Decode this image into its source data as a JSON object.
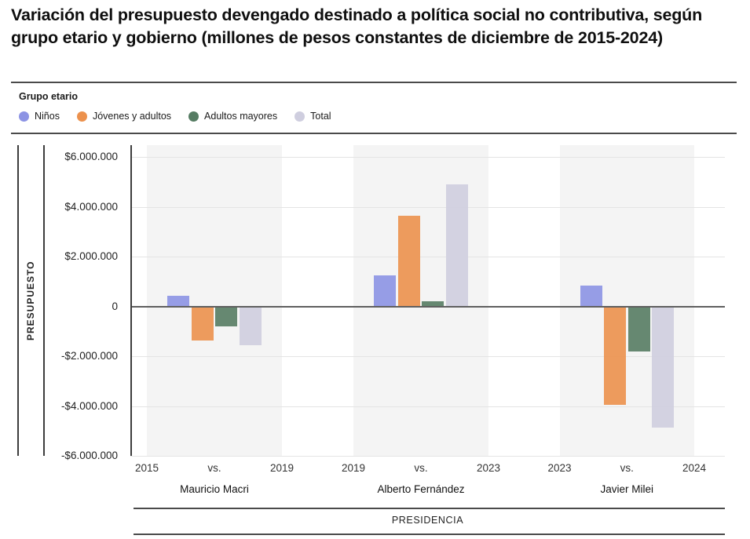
{
  "title": "Variación del presupuesto devengado destinado a política social no contributiva, según grupo etario y gobierno (millones de pesos constantes de diciembre de 2015-2024)",
  "legend": {
    "title": "Grupo etario",
    "items": [
      {
        "label": "Niños",
        "color": "#8C93E4"
      },
      {
        "label": "Jóvenes y adultos",
        "color": "#EC914D"
      },
      {
        "label": "Adultos mayores",
        "color": "#567C63"
      },
      {
        "label": "Total",
        "color": "#CFCEDF"
      }
    ]
  },
  "chart_data": {
    "type": "bar",
    "title": "Variación del presupuesto devengado destinado a política social no contributiva, según grupo etario y gobierno (millones de pesos constantes de diciembre de 2015-2024)",
    "ylabel": "PRESUPUESTO",
    "xlabel": "PRESIDENCIA",
    "ylim": [
      -6000000,
      6000000
    ],
    "ytick_step": 2000000,
    "ytick_labels": [
      "$6.000.000",
      "$4.000.000",
      "$2.000.000",
      "0",
      "-$2.000.000",
      "-$4.000.000",
      "-$6.000.000"
    ],
    "grid": true,
    "legend_position": "top",
    "vs_label": "vs.",
    "groups": [
      {
        "president": "Mauricio Macri",
        "from_year": "2015",
        "to_year": "2019"
      },
      {
        "president": "Alberto Fernández",
        "from_year": "2019",
        "to_year": "2023"
      },
      {
        "president": "Javier Milei",
        "from_year": "2023",
        "to_year": "2024"
      }
    ],
    "series": [
      {
        "name": "Niños",
        "color": "#8C93E4",
        "values": [
          450000,
          1250000,
          850000
        ]
      },
      {
        "name": "Jóvenes y adultos",
        "color": "#EC914D",
        "values": [
          -1350000,
          3650000,
          -3950000
        ]
      },
      {
        "name": "Adultos mayores",
        "color": "#567C63",
        "values": [
          -800000,
          230000,
          -1800000
        ]
      },
      {
        "name": "Total",
        "color": "#CFCEDF",
        "values": [
          -1550000,
          4900000,
          -4850000
        ]
      }
    ],
    "colors": {
      "band": "#f4f4f4",
      "grid": "#e4e4e4",
      "zero_line": "#5f5f5f",
      "axis_line": "#3d3d3d"
    }
  }
}
